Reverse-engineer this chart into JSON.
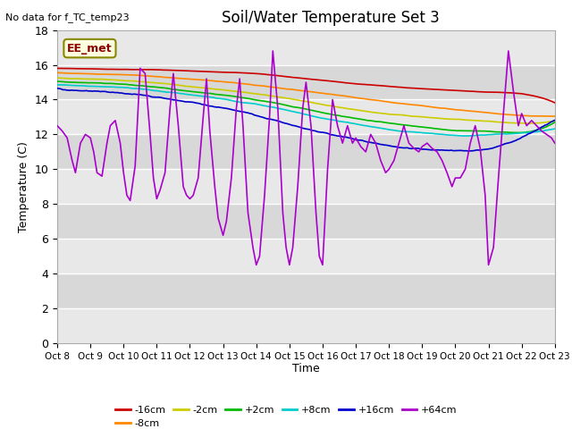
{
  "title": "Soil/Water Temperature Set 3",
  "subtitle": "No data for f_TC_temp23",
  "xlabel": "Time",
  "ylabel": "Temperature (C)",
  "ylim": [
    0,
    18
  ],
  "xlim": [
    0,
    15
  ],
  "background_color": "#ffffff",
  "plot_bg_light": "#e8e8e8",
  "plot_bg_dark": "#d0d0d0",
  "annotation_box": "EE_met",
  "x_tick_labels": [
    "Oct 8",
    "Oct 9",
    "Oct 10",
    "Oct 11",
    "Oct 12",
    "Oct 13",
    "Oct 14",
    "Oct 15",
    "Oct 16",
    "Oct 17",
    "Oct 18",
    "Oct 19",
    "Oct 20",
    "Oct 21",
    "Oct 22",
    "Oct 23"
  ],
  "legend_labels": [
    "-16cm",
    "-8cm",
    "-2cm",
    "+2cm",
    "+8cm",
    "+16cm",
    "+64cm"
  ],
  "legend_colors": [
    "#cc0000",
    "#ff8800",
    "#cccc00",
    "#00bb00",
    "#00cccc",
    "#0000cc",
    "#aa00cc"
  ]
}
